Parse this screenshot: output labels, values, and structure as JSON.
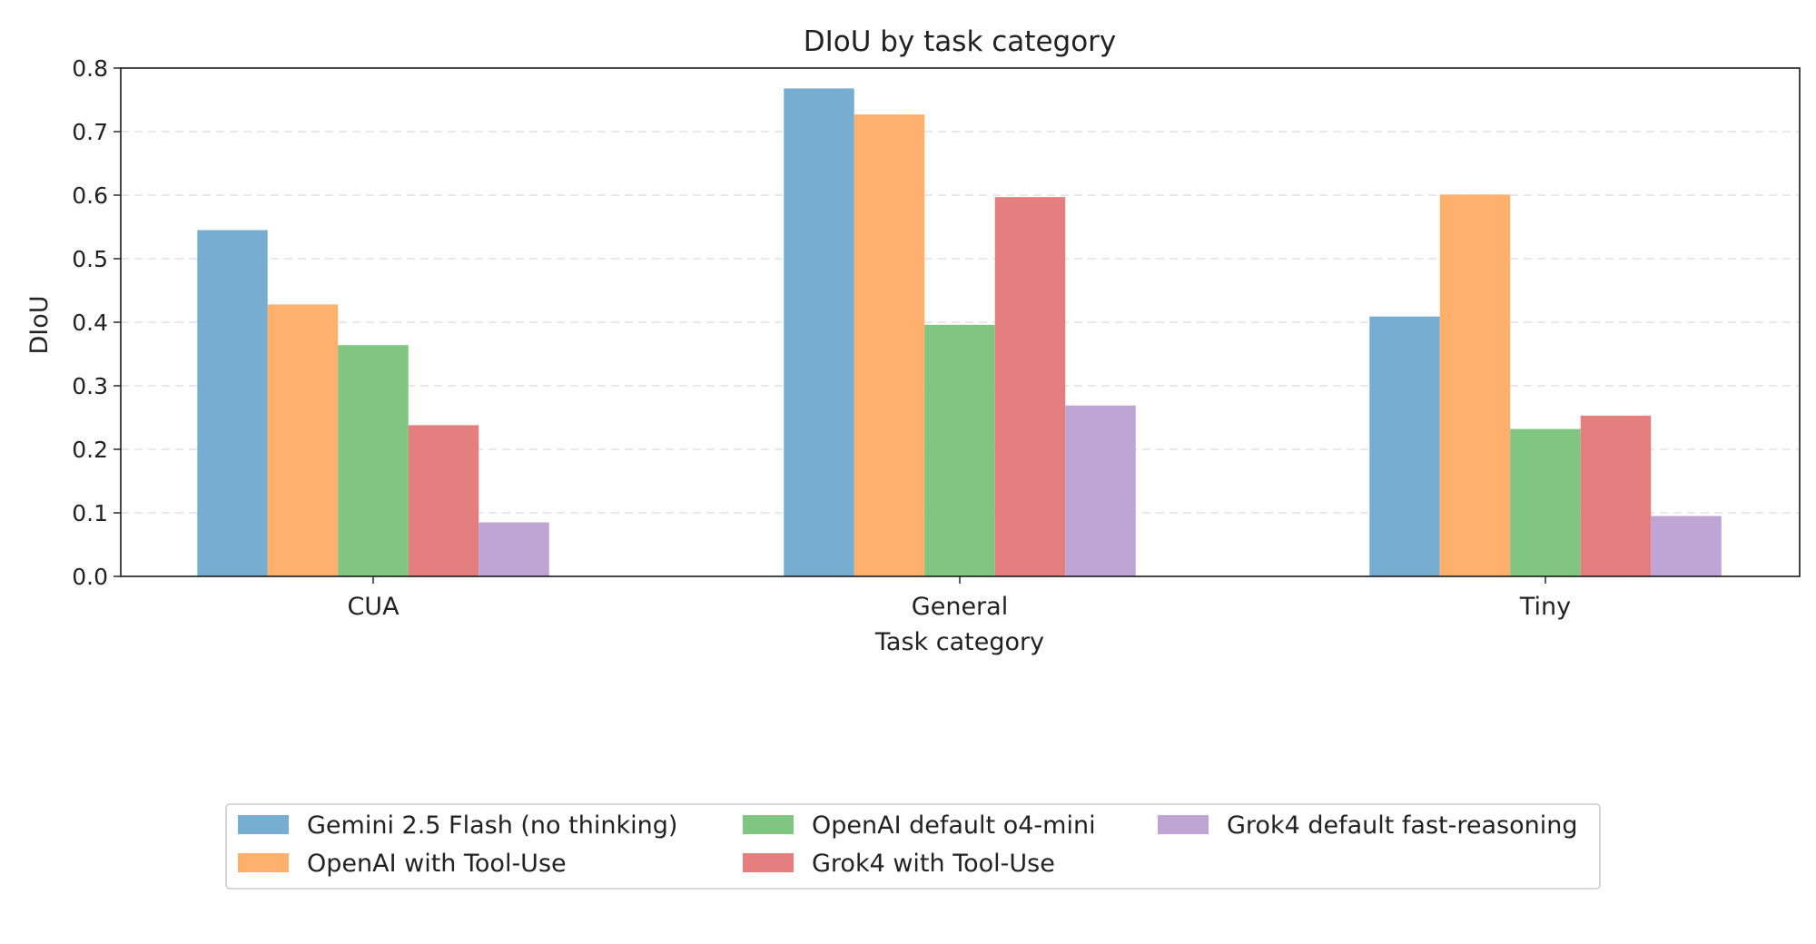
{
  "chart_data": {
    "type": "bar",
    "title": "DIoU by task category",
    "xlabel": "Task category",
    "ylabel": "DIoU",
    "categories": [
      "CUA",
      "General",
      "Tiny"
    ],
    "ylim": [
      0,
      0.8
    ],
    "yticks": [
      "0.0",
      "0.1",
      "0.2",
      "0.3",
      "0.4",
      "0.5",
      "0.6",
      "0.7",
      "0.8"
    ],
    "grid": "horizontal dashed",
    "legend_placement": "bottom-center",
    "series": [
      {
        "name": "Gemini 2.5 Flash (no thinking)",
        "color": "#78add2",
        "values": [
          0.545,
          0.768,
          0.409
        ]
      },
      {
        "name": "OpenAI with Tool-Use",
        "color": "#ffb06d",
        "values": [
          0.428,
          0.727,
          0.601
        ]
      },
      {
        "name": "OpenAI default o4-mini",
        "color": "#80c680",
        "values": [
          0.364,
          0.396,
          0.232
        ]
      },
      {
        "name": "Grok4 with Tool-Use",
        "color": "#e57f7f",
        "values": [
          0.238,
          0.597,
          0.253
        ]
      },
      {
        "name": "Grok4 default fast-reasoning",
        "color": "#bea5d6",
        "values": [
          0.085,
          0.269,
          0.095
        ]
      }
    ]
  }
}
